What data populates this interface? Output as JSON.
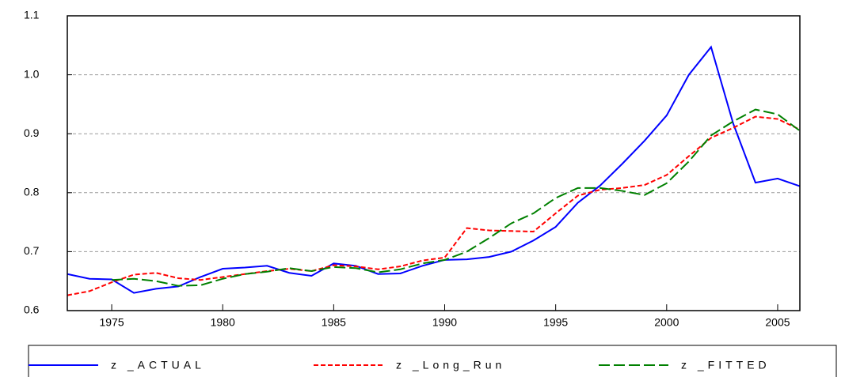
{
  "chart_data": {
    "type": "line",
    "x": [
      1973,
      1974,
      1975,
      1976,
      1977,
      1978,
      1979,
      1980,
      1981,
      1982,
      1983,
      1984,
      1985,
      1986,
      1987,
      1988,
      1989,
      1990,
      1991,
      1992,
      1993,
      1994,
      1995,
      1996,
      1997,
      1998,
      1999,
      2000,
      2001,
      2002,
      2003,
      2004,
      2005,
      2006
    ],
    "series": [
      {
        "name": "z _ACTUAL",
        "color": "#0000ff",
        "dash": "solid",
        "values": [
          0.662,
          0.654,
          0.653,
          0.63,
          0.637,
          0.641,
          0.657,
          0.671,
          0.673,
          0.676,
          0.664,
          0.659,
          0.68,
          0.676,
          0.662,
          0.663,
          0.676,
          0.686,
          0.687,
          0.691,
          0.7,
          0.719,
          0.742,
          0.783,
          0.812,
          0.849,
          0.888,
          0.931,
          1.0,
          1.047,
          0.917,
          0.817,
          0.824,
          0.811
        ]
      },
      {
        "name": "z _Long_Run",
        "color": "#ff0000",
        "dash": "dashed",
        "values": [
          0.626,
          0.633,
          0.648,
          0.661,
          0.664,
          0.655,
          0.652,
          0.657,
          0.662,
          0.667,
          0.671,
          0.667,
          0.677,
          0.675,
          0.67,
          0.675,
          0.685,
          0.69,
          0.74,
          0.736,
          0.735,
          0.734,
          0.765,
          0.795,
          0.805,
          0.808,
          0.813,
          0.83,
          0.862,
          0.893,
          0.91,
          0.929,
          0.925,
          0.907
        ]
      },
      {
        "name": "z _FITTED",
        "color": "#008000",
        "dash": "longdash",
        "values": [
          null,
          null,
          0.652,
          0.654,
          0.65,
          0.642,
          0.643,
          0.654,
          0.662,
          0.666,
          0.672,
          0.667,
          0.674,
          0.672,
          0.665,
          0.67,
          0.68,
          0.686,
          0.7,
          0.723,
          0.748,
          0.765,
          0.791,
          0.808,
          0.808,
          0.803,
          0.796,
          0.816,
          0.853,
          0.897,
          0.921,
          0.941,
          0.933,
          0.905
        ]
      }
    ],
    "xlim": [
      1973,
      2006
    ],
    "xticks": [
      1975,
      1980,
      1985,
      1990,
      1995,
      2000,
      2005
    ],
    "ylim": [
      0.6,
      1.1
    ],
    "yticks": [
      0.6,
      0.7,
      0.8,
      0.9,
      {
        "value": 1,
        "label": "1.0"
      },
      1.1
    ],
    "grid": true
  }
}
